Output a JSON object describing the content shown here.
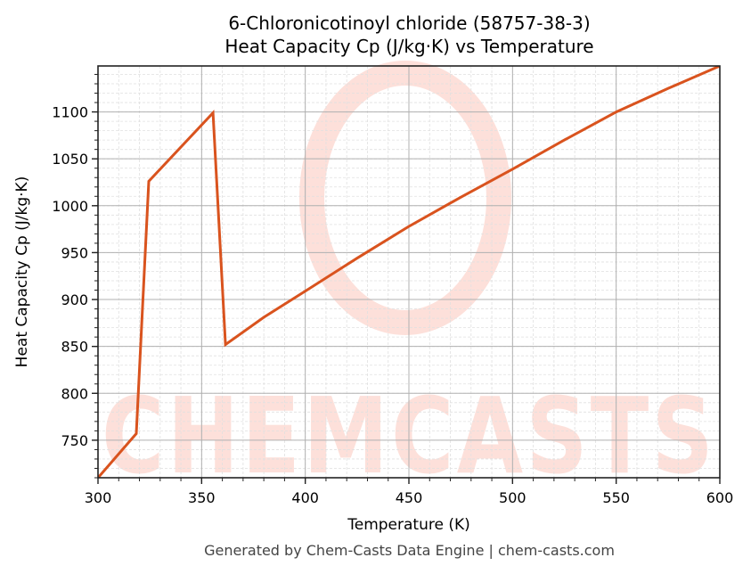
{
  "header": {
    "title_line1": "6-Chloronicotinoyl chloride (58757-38-3)",
    "title_line2": "Heat Capacity Cp (J/kg·K) vs Temperature"
  },
  "footer": {
    "text": "Generated by Chem-Casts Data Engine | chem-casts.com"
  },
  "watermark": {
    "text": "CHEMCASTS",
    "color": "#fde0da"
  },
  "colors": {
    "line": "#d9531e",
    "major_grid": "#b0b0b0",
    "minor_grid": "#e0e0e0",
    "axis": "#222222"
  },
  "chart_data": {
    "type": "line",
    "title": "6-Chloronicotinoyl chloride (58757-38-3)\nHeat Capacity Cp (J/kg·K) vs Temperature",
    "xlabel": "Temperature (K)",
    "ylabel": "Heat Capacity Cp (J/kg·K)",
    "xlim": [
      300,
      600
    ],
    "ylim": [
      710,
      1149
    ],
    "xticks": [
      300,
      350,
      400,
      450,
      500,
      550,
      600
    ],
    "yticks": [
      750,
      800,
      850,
      900,
      950,
      1000,
      1050,
      1100
    ],
    "x_minor_step": 10,
    "y_minor_step": 10,
    "grid": true,
    "legend": null,
    "series": [
      {
        "name": "Cp",
        "x": [
          300,
          318.5,
          324.5,
          355.5,
          361.5,
          380,
          400,
          425,
          450,
          475,
          500,
          525,
          550,
          575,
          600
        ],
        "y": [
          710,
          757,
          1026,
          1099,
          852,
          881,
          909,
          944,
          978,
          1009,
          1039,
          1070,
          1100,
          1125,
          1149
        ]
      }
    ]
  }
}
